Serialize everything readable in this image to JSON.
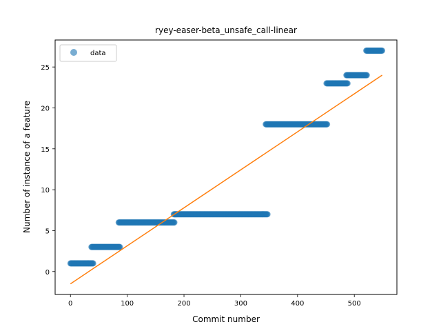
{
  "chart_data": {
    "type": "scatter",
    "title": "ryey-easer-beta_unsafe_call-linear",
    "xlabel": "Commit number",
    "ylabel": "Number of instance of a feature",
    "xlim": [
      -27,
      575
    ],
    "ylim": [
      -2.8,
      28.3
    ],
    "xticks": [
      0,
      100,
      200,
      300,
      400,
      500
    ],
    "yticks": [
      0,
      5,
      10,
      15,
      20,
      25
    ],
    "grid": false,
    "legend_position": "top-left",
    "colors": {
      "data": "#1f77b4",
      "fit": "#ff7f0e"
    },
    "series": [
      {
        "name": "data",
        "kind": "points",
        "segments": [
          {
            "x_start": 0,
            "x_end": 40,
            "y": 1
          },
          {
            "x_start": 37,
            "x_end": 87,
            "y": 3
          },
          {
            "x_start": 85,
            "x_end": 183,
            "y": 6
          },
          {
            "x_start": 182,
            "x_end": 347,
            "y": 7
          },
          {
            "x_start": 344,
            "x_end": 452,
            "y": 18
          },
          {
            "x_start": 451,
            "x_end": 488,
            "y": 23
          },
          {
            "x_start": 486,
            "x_end": 522,
            "y": 24
          },
          {
            "x_start": 521,
            "x_end": 549,
            "y": 27
          }
        ]
      },
      {
        "name": "",
        "kind": "line",
        "points": [
          [
            0,
            -1.5
          ],
          [
            549,
            24
          ]
        ]
      }
    ]
  }
}
